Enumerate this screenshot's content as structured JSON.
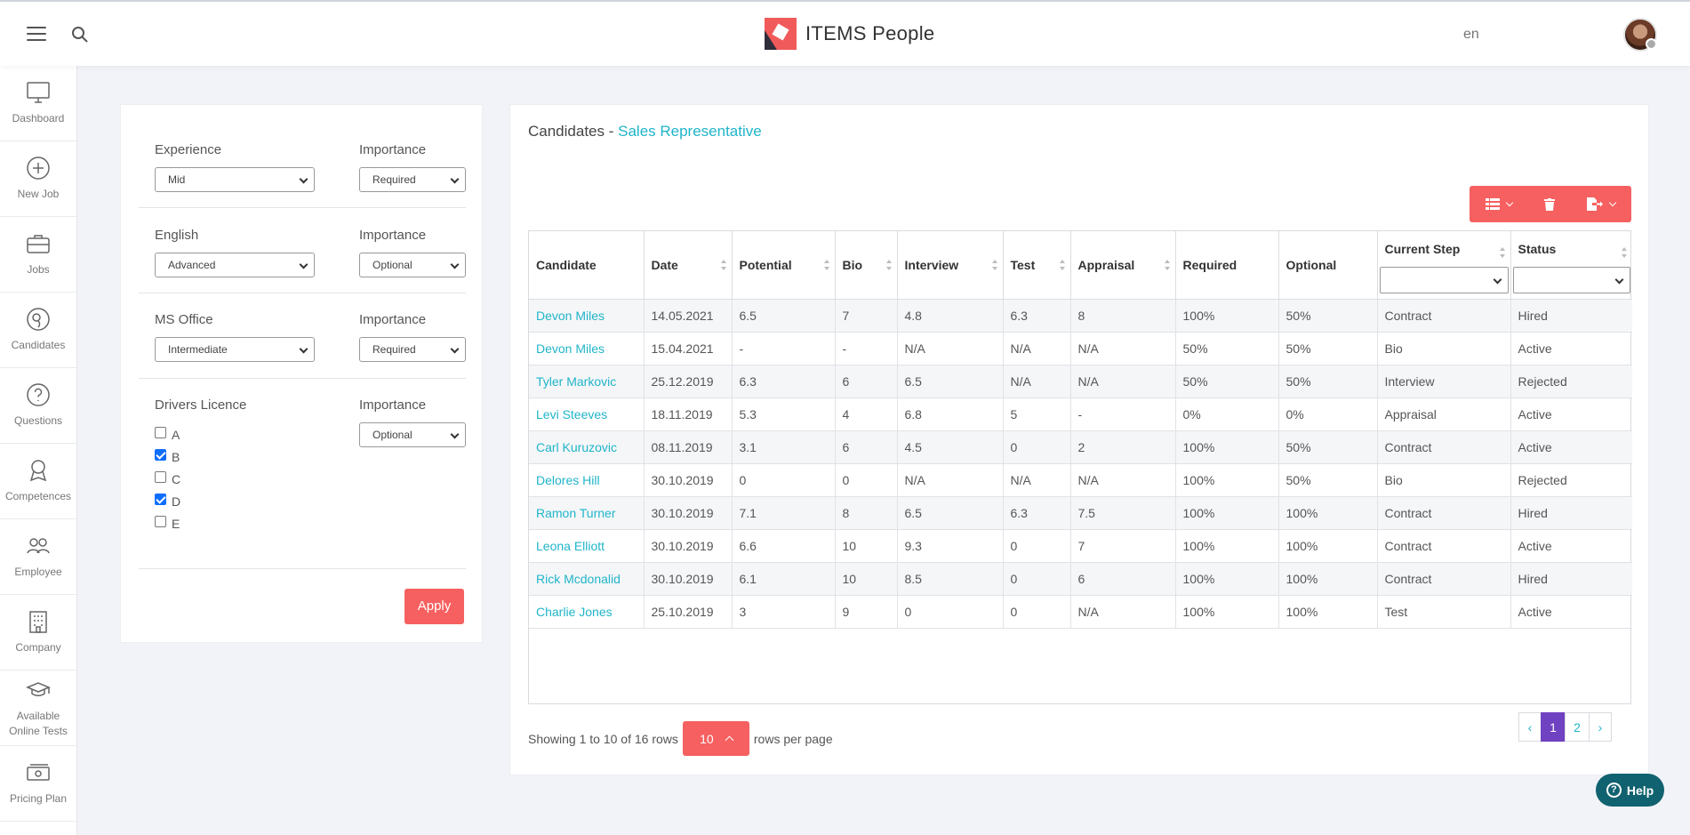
{
  "brand": {
    "name": "ITEMS People"
  },
  "header": {
    "language": "en"
  },
  "sidebar": {
    "items": [
      {
        "label": "Dashboard",
        "icon": "monitor-icon"
      },
      {
        "label": "New Job",
        "icon": "plus-circle-icon"
      },
      {
        "label": "Jobs",
        "icon": "briefcase-icon"
      },
      {
        "label": "Candidates",
        "icon": "candidates-icon"
      },
      {
        "label": "Questions",
        "icon": "question-icon"
      },
      {
        "label": "Competences",
        "icon": "award-icon"
      },
      {
        "label": "Employee",
        "icon": "users-icon"
      },
      {
        "label": "Company",
        "icon": "building-icon"
      },
      {
        "label": "Available Online Tests",
        "icon": "graduation-cap-icon"
      },
      {
        "label": "Pricing Plan",
        "icon": "money-icon"
      }
    ]
  },
  "filters": {
    "importance_label": "Importance",
    "experience": {
      "label": "Experience",
      "value": "Mid",
      "importance": "Required"
    },
    "english": {
      "label": "English",
      "value": "Advanced",
      "importance": "Optional"
    },
    "ms_office": {
      "label": "MS Office",
      "value": "Intermediate",
      "importance": "Required"
    },
    "drivers_licence": {
      "label": "Drivers Licence",
      "importance": "Optional",
      "options": [
        {
          "label": "A",
          "checked": false
        },
        {
          "label": "B",
          "checked": true
        },
        {
          "label": "C",
          "checked": false
        },
        {
          "label": "D",
          "checked": true
        },
        {
          "label": "E",
          "checked": false
        }
      ]
    },
    "apply_label": "Apply"
  },
  "main": {
    "title_prefix": "Candidates -",
    "title_job": "Sales Representative",
    "accent_color": "#20b5c9",
    "button_color": "#f66060"
  },
  "table": {
    "columns": [
      "Candidate",
      "Date",
      "Potential",
      "Bio",
      "Interview",
      "Test",
      "Appraisal",
      "Required",
      "Optional",
      "Current Step",
      "Status"
    ],
    "rows": [
      [
        "Devon Miles",
        "14.05.2021",
        "6.5",
        "7",
        "4.8",
        "6.3",
        "8",
        "100%",
        "50%",
        "Contract",
        "Hired"
      ],
      [
        "Devon Miles",
        "15.04.2021",
        "-",
        "-",
        "N/A",
        "N/A",
        "N/A",
        "50%",
        "50%",
        "Bio",
        "Active"
      ],
      [
        "Tyler Markovic",
        "25.12.2019",
        "6.3",
        "6",
        "6.5",
        "N/A",
        "N/A",
        "50%",
        "50%",
        "Interview",
        "Rejected"
      ],
      [
        "Levi Steeves",
        "18.11.2019",
        "5.3",
        "4",
        "6.8",
        "5",
        "-",
        "0%",
        "0%",
        "Appraisal",
        "Active"
      ],
      [
        "Carl Kuruzovic",
        "08.11.2019",
        "3.1",
        "6",
        "4.5",
        "0",
        "2",
        "100%",
        "50%",
        "Contract",
        "Active"
      ],
      [
        "Delores Hill",
        "30.10.2019",
        "0",
        "0",
        "N/A",
        "N/A",
        "N/A",
        "100%",
        "50%",
        "Bio",
        "Rejected"
      ],
      [
        "Ramon Turner",
        "30.10.2019",
        "7.1",
        "8",
        "6.5",
        "6.3",
        "7.5",
        "100%",
        "100%",
        "Contract",
        "Hired"
      ],
      [
        "Leona Elliott",
        "30.10.2019",
        "6.6",
        "10",
        "9.3",
        "0",
        "7",
        "100%",
        "100%",
        "Contract",
        "Active"
      ],
      [
        "Rick Mcdonalid",
        "30.10.2019",
        "6.1",
        "10",
        "8.5",
        "0",
        "6",
        "100%",
        "100%",
        "Contract",
        "Hired"
      ],
      [
        "Charlie Jones",
        "25.10.2019",
        "3",
        "9",
        "0",
        "0",
        "N/A",
        "100%",
        "100%",
        "Test",
        "Active"
      ]
    ]
  },
  "pagination": {
    "showing": "Showing 1 to 10 of 16 rows",
    "per_page": "10",
    "per_page_suffix": "rows per page",
    "prev": "‹",
    "pages": [
      "1",
      "2"
    ],
    "current": "1",
    "next": "›"
  },
  "help": {
    "label": "Help"
  }
}
